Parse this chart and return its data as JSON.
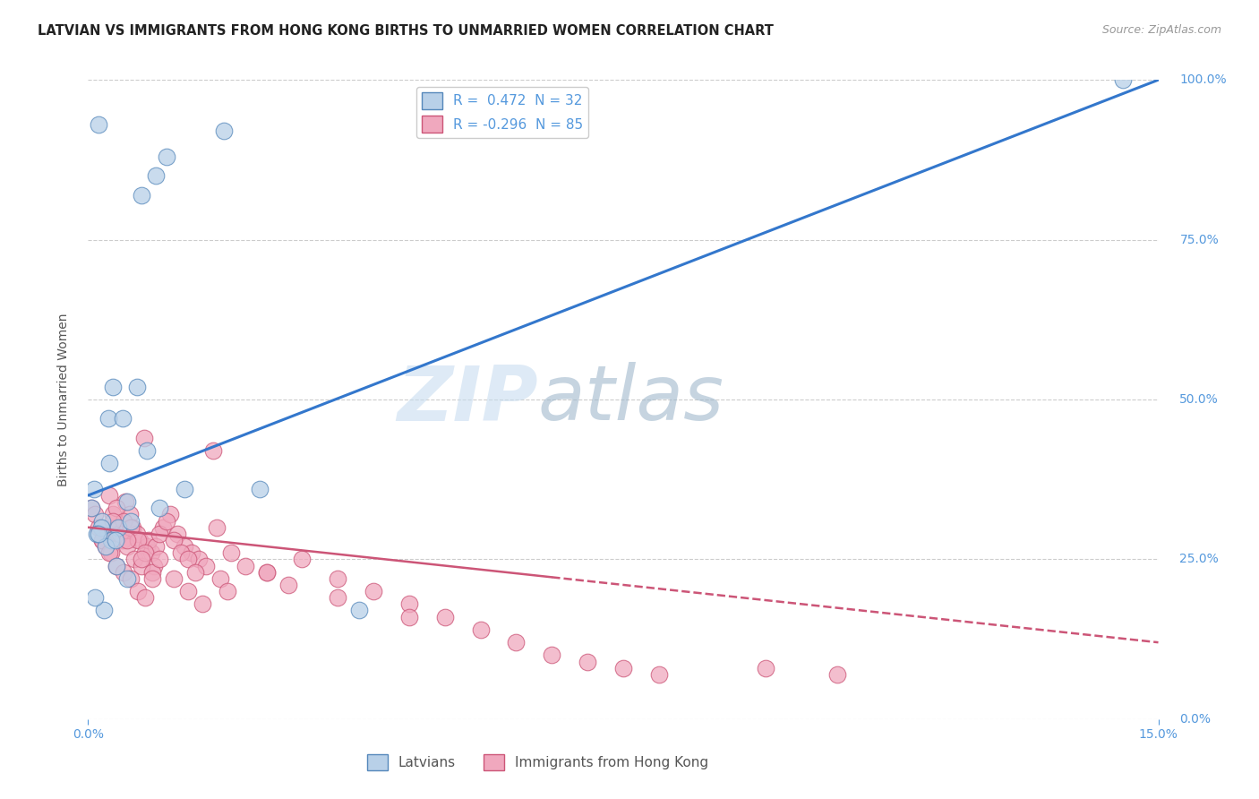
{
  "title": "LATVIAN VS IMMIGRANTS FROM HONG KONG BIRTHS TO UNMARRIED WOMEN CORRELATION CHART",
  "source": "Source: ZipAtlas.com",
  "ylabel": "Births to Unmarried Women",
  "xmin": 0.0,
  "xmax": 15.0,
  "ymin": 0.0,
  "ymax": 100.0,
  "x_ticks": [
    0.0,
    5.0,
    10.0,
    15.0
  ],
  "x_tick_labels": [
    "0.0%",
    "",
    "",
    "15.0%"
  ],
  "y_ticks": [
    0.0,
    25.0,
    50.0,
    75.0,
    100.0
  ],
  "y_tick_labels": [
    "0.0%",
    "25.0%",
    "50.0%",
    "75.0%",
    "100.0%"
  ],
  "latvians_color": "#b8d0e8",
  "latvians_edge_color": "#5588bb",
  "hk_color": "#f0a8be",
  "hk_edge_color": "#cc5577",
  "blue_line_color": "#3377cc",
  "pink_line_color": "#cc5577",
  "r_latvian": 0.472,
  "n_latvian": 32,
  "r_hk": -0.296,
  "n_hk": 85,
  "legend_labels": [
    "Latvians",
    "Immigrants from Hong Kong"
  ],
  "watermark_zip": "ZIP",
  "watermark_atlas": "atlas",
  "watermark_color": "#c0d0e0",
  "grid_color": "#cccccc",
  "title_color": "#222222",
  "axis_label_color": "#555555",
  "tick_color": "#5599dd",
  "latvians_x": [
    0.15,
    1.1,
    1.9,
    0.75,
    0.95,
    0.08,
    0.05,
    0.2,
    0.35,
    0.28,
    0.42,
    0.55,
    0.18,
    0.12,
    0.32,
    0.25,
    0.4,
    1.0,
    1.35,
    0.6,
    0.82,
    2.4,
    0.22,
    0.1,
    0.38,
    0.48,
    0.68,
    0.3,
    0.15,
    0.55,
    14.5,
    3.8
  ],
  "latvians_y": [
    93.0,
    88.0,
    92.0,
    82.0,
    85.0,
    36.0,
    33.0,
    31.0,
    52.0,
    47.0,
    30.0,
    34.0,
    30.0,
    29.0,
    28.0,
    27.0,
    24.0,
    33.0,
    36.0,
    31.0,
    42.0,
    36.0,
    17.0,
    19.0,
    28.0,
    47.0,
    52.0,
    40.0,
    29.0,
    22.0,
    100.0,
    17.0
  ],
  "hk_x": [
    0.05,
    0.1,
    0.15,
    0.2,
    0.25,
    0.28,
    0.32,
    0.38,
    0.42,
    0.48,
    0.52,
    0.58,
    0.62,
    0.68,
    0.72,
    0.78,
    0.82,
    0.88,
    0.92,
    0.35,
    0.45,
    0.55,
    0.65,
    0.75,
    0.85,
    0.95,
    1.05,
    1.15,
    1.25,
    1.35,
    1.45,
    1.55,
    1.65,
    1.75,
    1.85,
    1.95,
    0.3,
    0.4,
    0.5,
    0.6,
    0.7,
    0.8,
    0.9,
    1.0,
    1.1,
    1.2,
    1.3,
    1.4,
    1.5,
    2.0,
    2.2,
    2.5,
    2.8,
    3.0,
    3.5,
    4.0,
    4.5,
    5.0,
    5.5,
    6.0,
    6.5,
    7.0,
    7.5,
    8.0,
    0.2,
    0.3,
    0.4,
    0.5,
    0.6,
    0.7,
    0.8,
    0.9,
    1.0,
    1.2,
    1.4,
    1.6,
    1.8,
    2.5,
    3.5,
    0.35,
    0.55,
    0.75,
    4.5,
    9.5,
    10.5
  ],
  "hk_y": [
    33.0,
    32.0,
    30.0,
    28.0,
    27.0,
    29.0,
    26.0,
    30.0,
    29.0,
    28.0,
    34.0,
    32.0,
    30.0,
    29.0,
    28.0,
    44.0,
    27.0,
    26.0,
    24.0,
    32.0,
    29.0,
    27.0,
    25.0,
    24.0,
    28.0,
    27.0,
    30.0,
    32.0,
    29.0,
    27.0,
    26.0,
    25.0,
    24.0,
    42.0,
    22.0,
    20.0,
    35.0,
    33.0,
    31.0,
    30.0,
    28.0,
    26.0,
    23.0,
    29.0,
    31.0,
    28.0,
    26.0,
    25.0,
    23.0,
    26.0,
    24.0,
    23.0,
    21.0,
    25.0,
    22.0,
    20.0,
    18.0,
    16.0,
    14.0,
    12.0,
    10.0,
    9.0,
    8.0,
    7.0,
    28.0,
    26.0,
    24.0,
    23.0,
    22.0,
    20.0,
    19.0,
    22.0,
    25.0,
    22.0,
    20.0,
    18.0,
    30.0,
    23.0,
    19.0,
    31.0,
    28.0,
    25.0,
    16.0,
    8.0,
    7.0
  ]
}
